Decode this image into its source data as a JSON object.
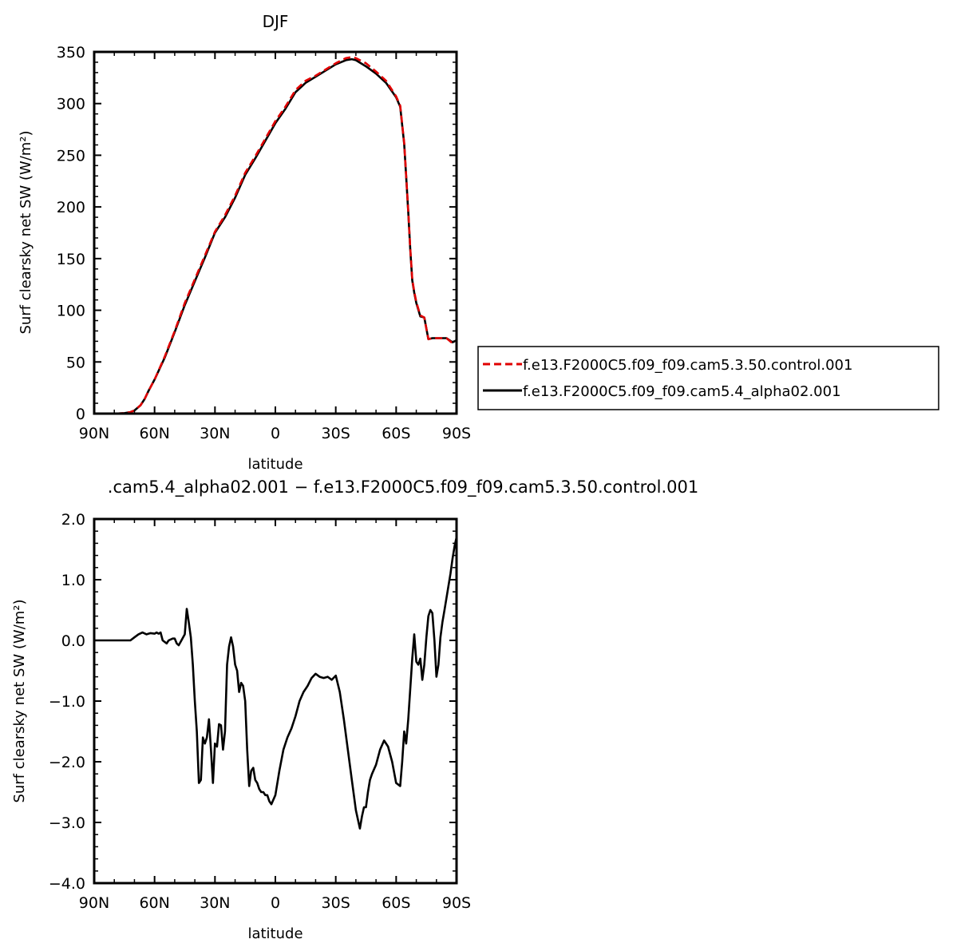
{
  "chart_data": [
    {
      "type": "line",
      "title": "DJF",
      "xlabel": "latitude",
      "ylabel": "Surf clearsky net SW (W/m²)",
      "xlim": [
        -90,
        90
      ],
      "ylim": [
        0,
        350
      ],
      "xticks": [
        {
          "value": -90,
          "label": "90N"
        },
        {
          "value": -60,
          "label": "60N"
        },
        {
          "value": -30,
          "label": "30N"
        },
        {
          "value": 0,
          "label": "0"
        },
        {
          "value": 30,
          "label": "30S"
        },
        {
          "value": 60,
          "label": "60S"
        },
        {
          "value": 90,
          "label": "90S"
        }
      ],
      "yticks": [
        {
          "value": 0,
          "label": "0"
        },
        {
          "value": 50,
          "label": "50"
        },
        {
          "value": 100,
          "label": "100"
        },
        {
          "value": 150,
          "label": "150"
        },
        {
          "value": 200,
          "label": "200"
        },
        {
          "value": 250,
          "label": "250"
        },
        {
          "value": 300,
          "label": "300"
        },
        {
          "value": 350,
          "label": "350"
        }
      ],
      "legend": {
        "position": "right",
        "entries": [
          "f.e13.F2000C5.f09_f09.cam5.3.50.control.001",
          "f.e13.F2000C5.f09_f09.cam5.4_alpha02.001"
        ]
      },
      "series": [
        {
          "name": "f.e13.F2000C5.f09_f09.cam5.3.50.control.001",
          "color": "#e00000",
          "dash": "dashed",
          "x": [
            -90,
            -80,
            -75,
            -72,
            -70,
            -67,
            -65,
            -63,
            -60,
            -55,
            -50,
            -45,
            -40,
            -35,
            -30,
            -25,
            -20,
            -15,
            -10,
            -5,
            0,
            5,
            10,
            15,
            20,
            25,
            30,
            35,
            38,
            40,
            45,
            50,
            55,
            60,
            62,
            64,
            65,
            66,
            67,
            68,
            69,
            70,
            72,
            74,
            76,
            78,
            80,
            85,
            88,
            90
          ],
          "y": [
            0,
            0,
            0.5,
            1.5,
            3,
            8,
            14,
            22,
            33,
            55,
            80,
            107,
            130,
            153,
            176,
            192,
            211,
            233,
            249,
            266,
            283,
            297,
            313,
            322,
            327,
            333,
            339,
            344,
            345,
            344,
            339,
            331,
            322,
            307,
            298,
            262,
            230,
            196,
            160,
            130,
            118,
            108,
            95,
            93,
            72,
            73,
            73,
            73,
            68,
            70
          ]
        },
        {
          "name": "f.e13.F2000C5.f09_f09.cam5.4_alpha02.001",
          "color": "#000000",
          "dash": "solid",
          "x": [
            -90,
            -80,
            -75,
            -72,
            -70,
            -67,
            -65,
            -63,
            -60,
            -55,
            -50,
            -45,
            -40,
            -35,
            -30,
            -25,
            -20,
            -15,
            -10,
            -5,
            0,
            5,
            10,
            15,
            20,
            25,
            30,
            35,
            38,
            40,
            45,
            50,
            55,
            60,
            62,
            64,
            65,
            66,
            67,
            68,
            69,
            70,
            72,
            74,
            76,
            78,
            80,
            85,
            88,
            90
          ],
          "y": [
            0,
            0,
            0.5,
            1.5,
            3,
            8,
            14,
            22,
            33,
            54,
            79,
            105,
            128,
            151,
            175,
            190,
            209,
            231,
            247,
            264,
            281,
            295,
            311,
            320,
            326,
            332,
            338,
            342,
            343,
            342,
            336,
            329,
            320,
            306,
            297,
            261,
            229,
            195,
            159,
            129,
            117,
            107,
            94,
            93,
            72,
            73,
            73,
            73,
            69,
            71
          ]
        }
      ]
    },
    {
      "type": "line",
      "title": ".cam5.4_alpha02.001 − f.e13.F2000C5.f09_f09.cam5.3.50.control.001",
      "xlabel": "latitude",
      "ylabel": "Surf clearsky net SW (W/m²)",
      "xlim": [
        -90,
        90
      ],
      "ylim": [
        -4.0,
        2.0
      ],
      "xticks": [
        {
          "value": -90,
          "label": "90N"
        },
        {
          "value": -60,
          "label": "60N"
        },
        {
          "value": -30,
          "label": "30N"
        },
        {
          "value": 0,
          "label": "0"
        },
        {
          "value": 30,
          "label": "30S"
        },
        {
          "value": 60,
          "label": "60S"
        },
        {
          "value": 90,
          "label": "90S"
        }
      ],
      "yticks": [
        {
          "value": -4.0,
          "label": "−4.0"
        },
        {
          "value": -3.0,
          "label": "−3.0"
        },
        {
          "value": -2.0,
          "label": "−2.0"
        },
        {
          "value": -1.0,
          "label": "−1.0"
        },
        {
          "value": 0.0,
          "label": "0.0"
        },
        {
          "value": 1.0,
          "label": "1.0"
        },
        {
          "value": 2.0,
          "label": "2.0"
        }
      ],
      "series": [
        {
          "color": "#000000",
          "dash": "solid",
          "x": [
            -90,
            -75,
            -72,
            -70,
            -68,
            -66,
            -64,
            -62,
            -60,
            -59,
            -58,
            -57,
            -56,
            -54,
            -53,
            -51,
            -50,
            -49,
            -48,
            -47,
            -45,
            -44,
            -43,
            -42,
            -41,
            -40,
            -39,
            -38,
            -37,
            -36,
            -35,
            -34,
            -33,
            -32,
            -31,
            -30,
            -29,
            -28,
            -27,
            -26,
            -25,
            -24,
            -23,
            -22,
            -21,
            -20,
            -19,
            -18,
            -17,
            -16,
            -15,
            -14,
            -13,
            -12,
            -11,
            -10,
            -9,
            -8,
            -7,
            -6,
            -5,
            -4,
            -3,
            -2,
            0,
            2,
            4,
            6,
            8,
            10,
            12,
            14,
            16,
            18,
            20,
            22,
            24,
            26,
            28,
            30,
            32,
            34,
            36,
            38,
            40,
            42,
            43,
            44,
            45,
            46,
            47,
            48,
            50,
            52,
            54,
            56,
            58,
            60,
            62,
            63,
            64,
            65,
            66,
            67,
            68,
            69,
            70,
            71,
            72,
            73,
            74,
            75,
            76,
            77,
            78,
            79,
            80,
            81,
            82,
            83,
            84,
            85,
            86,
            87,
            88,
            89,
            90
          ],
          "y": [
            0,
            0,
            0,
            0.05,
            0.1,
            0.13,
            0.1,
            0.12,
            0.11,
            0.13,
            0.11,
            0.13,
            0,
            -0.05,
            0,
            0.03,
            0.03,
            -0.05,
            -0.08,
            -0.02,
            0.1,
            0.52,
            0.3,
            0.05,
            -0.4,
            -1.0,
            -1.5,
            -2.35,
            -2.3,
            -1.6,
            -1.7,
            -1.6,
            -1.3,
            -1.8,
            -2.35,
            -1.7,
            -1.75,
            -1.38,
            -1.4,
            -1.8,
            -1.5,
            -0.4,
            -0.1,
            0.05,
            -0.1,
            -0.4,
            -0.5,
            -0.85,
            -0.7,
            -0.75,
            -1.0,
            -1.8,
            -2.4,
            -2.15,
            -2.1,
            -2.3,
            -2.35,
            -2.45,
            -2.5,
            -2.5,
            -2.55,
            -2.55,
            -2.65,
            -2.7,
            -2.55,
            -2.15,
            -1.8,
            -1.6,
            -1.45,
            -1.25,
            -1.0,
            -0.85,
            -0.75,
            -0.62,
            -0.55,
            -0.6,
            -0.62,
            -0.6,
            -0.65,
            -0.58,
            -0.85,
            -1.3,
            -1.8,
            -2.3,
            -2.8,
            -3.1,
            -2.9,
            -2.75,
            -2.75,
            -2.5,
            -2.3,
            -2.2,
            -2.05,
            -1.8,
            -1.65,
            -1.75,
            -2.0,
            -2.35,
            -2.4,
            -2.0,
            -1.5,
            -1.7,
            -1.3,
            -0.8,
            -0.3,
            0.1,
            -0.35,
            -0.4,
            -0.3,
            -0.65,
            -0.4,
            0.05,
            0.4,
            0.5,
            0.45,
            0.0,
            -0.6,
            -0.4,
            0.05,
            0.3,
            0.5,
            0.7,
            0.9,
            1.1,
            1.35,
            1.55,
            1.7
          ]
        }
      ]
    }
  ]
}
